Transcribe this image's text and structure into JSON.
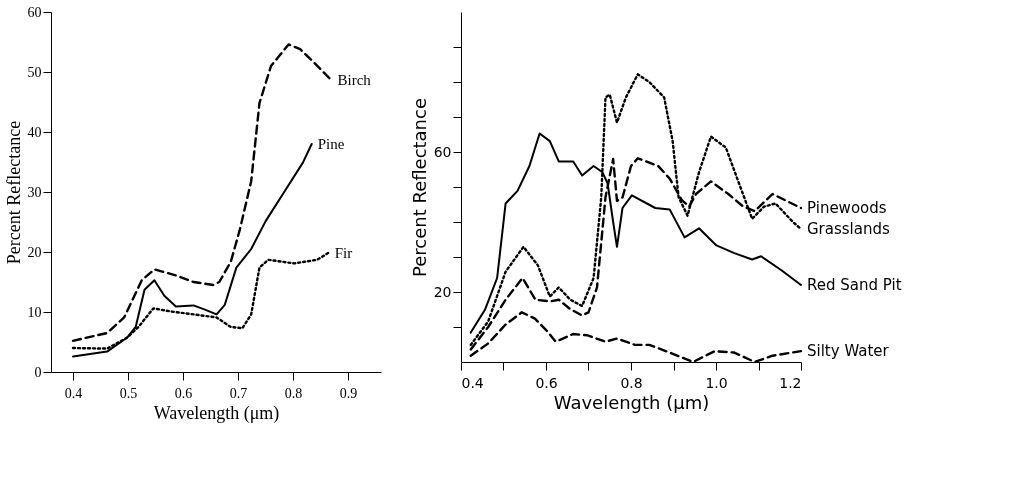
{
  "chart_data": [
    {
      "type": "line",
      "xlabel": "Wavelength (μm)",
      "ylabel": "Percent Reflectance",
      "xlim": [
        0.36,
        0.96
      ],
      "ylim": [
        0,
        60
      ],
      "xticks": [
        0.4,
        0.5,
        0.6,
        0.7,
        0.8,
        0.9
      ],
      "yticks": [
        0,
        10,
        20,
        30,
        40,
        50,
        60
      ],
      "grid": false,
      "marker": "none",
      "series": [
        {
          "name": "Birch",
          "color": "#000000",
          "line_style": "dashed",
          "x": [
            0.4,
            0.462,
            0.493,
            0.525,
            0.548,
            0.587,
            0.619,
            0.655,
            0.666,
            0.687,
            0.703,
            0.724,
            0.739,
            0.76,
            0.792,
            0.813,
            0.839,
            0.87
          ],
          "values": [
            5.2,
            6.5,
            9.1,
            15.3,
            17.1,
            16.1,
            15,
            14.5,
            15,
            18.4,
            23.6,
            31.8,
            44.8,
            51,
            54.6,
            53.8,
            51.5,
            48.6
          ]
        },
        {
          "name": "Pine",
          "color": "#000000",
          "line_style": "solid",
          "x": [
            0.4,
            0.462,
            0.498,
            0.514,
            0.53,
            0.548,
            0.566,
            0.587,
            0.619,
            0.64,
            0.661,
            0.676,
            0.697,
            0.724,
            0.75,
            0.786,
            0.818,
            0.834
          ],
          "values": [
            2.6,
            3.4,
            5.7,
            7.5,
            13.7,
            15.3,
            12.7,
            10.9,
            11.1,
            10.4,
            9.6,
            11.2,
            17.4,
            20.5,
            25.1,
            30.3,
            34.9,
            38
          ]
        },
        {
          "name": "Fir",
          "color": "#000000",
          "line_style": "dotted",
          "x": [
            0.4,
            0.462,
            0.498,
            0.519,
            0.546,
            0.577,
            0.619,
            0.661,
            0.687,
            0.708,
            0.724,
            0.739,
            0.755,
            0.802,
            0.844,
            0.865
          ],
          "values": [
            4,
            3.9,
            5.7,
            7.5,
            10.6,
            10.1,
            9.6,
            9.1,
            7.5,
            7.3,
            9.6,
            17.4,
            18.7,
            18.1,
            18.7,
            19.9
          ]
        }
      ]
    },
    {
      "type": "line",
      "xlabel": "Wavelength (μm)",
      "ylabel": "Percent Reflectance",
      "xlim": [
        0.4,
        1.2
      ],
      "ylim": [
        0,
        100
      ],
      "xticks": [
        0.4,
        {
          "value": 0.5,
          "label": null
        },
        0.6,
        {
          "value": 0.7,
          "label": null
        },
        0.8,
        {
          "value": 0.9,
          "label": null
        },
        {
          "value": 1.0,
          "label": "1.0"
        },
        {
          "value": 1.1,
          "label": null
        },
        1.2
      ],
      "yticks": [
        {
          "value": 10,
          "label": null
        },
        20,
        {
          "value": 30,
          "label": null
        },
        {
          "value": 40,
          "label": null
        },
        {
          "value": 50,
          "label": null
        },
        60,
        {
          "value": 70,
          "label": null
        },
        {
          "value": 80,
          "label": null
        },
        {
          "value": 90,
          "label": null
        }
      ],
      "grid": false,
      "marker": "none",
      "series": [
        {
          "name": "Pinewoods",
          "color": "#000000",
          "line_style": "dashed",
          "x": [
            0.423,
            0.464,
            0.505,
            0.545,
            0.575,
            0.61,
            0.63,
            0.657,
            0.685,
            0.7,
            0.72,
            0.74,
            0.758,
            0.767,
            0.78,
            0.8,
            0.816,
            0.864,
            0.891,
            0.92,
            0.937,
            0.953,
            0.988,
            1.029,
            1.064,
            1.091,
            1.133,
            1.2
          ],
          "values": [
            3.6,
            10,
            17.8,
            24,
            17.8,
            17.3,
            17.8,
            15.1,
            13.3,
            14.2,
            21.3,
            47.1,
            58,
            46,
            47,
            56,
            58.2,
            56,
            52.4,
            46.2,
            44.4,
            48,
            51.6,
            48,
            44.4,
            43.1,
            48,
            44
          ]
        },
        {
          "name": "Grasslands",
          "color": "#000000",
          "line_style": "dotted",
          "x": [
            0.423,
            0.464,
            0.505,
            0.547,
            0.581,
            0.609,
            0.63,
            0.657,
            0.685,
            0.712,
            0.73,
            0.74,
            0.75,
            0.767,
            0.788,
            0.816,
            0.843,
            0.878,
            0.898,
            0.912,
            0.933,
            0.96,
            0.988,
            1.023,
            1.05,
            1.085,
            1.113,
            1.14,
            1.181,
            1.2
          ],
          "values": [
            4.9,
            11.6,
            25.8,
            32.9,
            27.6,
            18.7,
            21.3,
            17.8,
            16,
            24,
            47.1,
            75.6,
            76.4,
            68.4,
            75.6,
            82.2,
            80,
            75.6,
            63.1,
            47.1,
            41.8,
            54.2,
            64.4,
            61.3,
            52.4,
            40.9,
            44.4,
            45.3,
            40,
            38
          ]
        },
        {
          "name": "Red Sand Pit",
          "color": "#000000",
          "line_style": "solid",
          "x": [
            0.423,
            0.457,
            0.485,
            0.505,
            0.533,
            0.561,
            0.585,
            0.609,
            0.63,
            0.664,
            0.685,
            0.712,
            0.733,
            0.745,
            0.758,
            0.767,
            0.78,
            0.802,
            0.857,
            0.891,
            0.926,
            0.96,
            1.001,
            1.043,
            1.085,
            1.106,
            1.154,
            1.2
          ],
          "values": [
            8.4,
            15.1,
            24,
            45.3,
            48.9,
            56,
            65.3,
            63.1,
            57.3,
            57.3,
            53.3,
            56,
            54.2,
            51,
            40,
            32.9,
            44,
            47.6,
            44,
            43.6,
            35.6,
            38.2,
            33.3,
            31.1,
            29.3,
            30.2,
            26.2,
            22
          ]
        },
        {
          "name": "Silty Water",
          "color": "#000000",
          "line_style": "dashed",
          "x": [
            0.423,
            0.464,
            0.505,
            0.543,
            0.574,
            0.602,
            0.623,
            0.664,
            0.698,
            0.74,
            0.767,
            0.809,
            0.843,
            0.891,
            0.946,
            0.997,
            1.043,
            1.091,
            1.133,
            1.2
          ],
          "values": [
            1.8,
            5.3,
            10.7,
            14.2,
            12.4,
            8.9,
            5.8,
            8,
            7.6,
            5.8,
            6.7,
            4.9,
            4.9,
            2.7,
            0,
            3.1,
            2.7,
            0,
            1.8,
            3.1
          ]
        }
      ]
    }
  ]
}
